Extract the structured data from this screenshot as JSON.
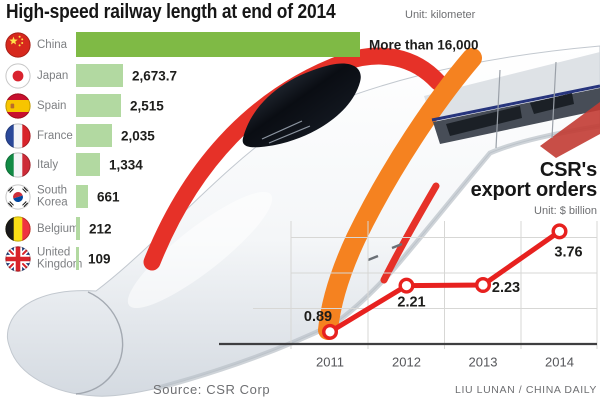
{
  "header": {
    "title": "High-speed railway length at end of 2014",
    "unit_note": "Unit: kilometer"
  },
  "export_header": {
    "title_line1": "CSR's",
    "title_line2": "export orders",
    "unit_note": "Unit: $ billion"
  },
  "footer": {
    "source": "Source: CSR Corp",
    "credit": "LIU LUNAN / CHINA DAILY"
  },
  "colors": {
    "china_bar": "#7fba45",
    "bar": "#b2d9a1",
    "line_red": "#e7211f",
    "grid": "#d7d7d5",
    "axis": "#3e3e40",
    "country_label": "#7d7f82",
    "value_text": "#1d1d1b",
    "muted_text": "#6e6f72"
  },
  "chart_data": [
    {
      "type": "bar",
      "orientation": "horizontal",
      "title": "High-speed railway length at end of 2014",
      "unit": "kilometer",
      "categories": [
        "China",
        "Japan",
        "Spain",
        "France",
        "Italy",
        "South Korea",
        "Belgium",
        "United Kingdom"
      ],
      "values": [
        16000,
        2673.7,
        2515,
        2035,
        1334,
        661,
        212,
        109
      ],
      "value_labels": [
        "More than 16,000",
        "2,673.7",
        "2,515",
        "2,035",
        "1,334",
        "661",
        "212",
        "109"
      ],
      "flag_icons": [
        "china",
        "japan",
        "spain",
        "france",
        "italy",
        "south-korea",
        "belgium",
        "united-kingdom"
      ],
      "highlight_index": 0,
      "xlim": [
        0,
        16200
      ],
      "grid": false
    },
    {
      "type": "line",
      "title": "CSR's export orders",
      "unit": "$ billion",
      "x": [
        "2011",
        "2012",
        "2013",
        "2014"
      ],
      "values": [
        0.89,
        2.21,
        2.23,
        3.76
      ],
      "value_labels": [
        "0.89",
        "2.21",
        "2.23",
        "3.76"
      ],
      "marker": "open-circle",
      "grid": true,
      "legend": false,
      "ylim_implied": [
        0.5,
        4.1
      ]
    }
  ]
}
